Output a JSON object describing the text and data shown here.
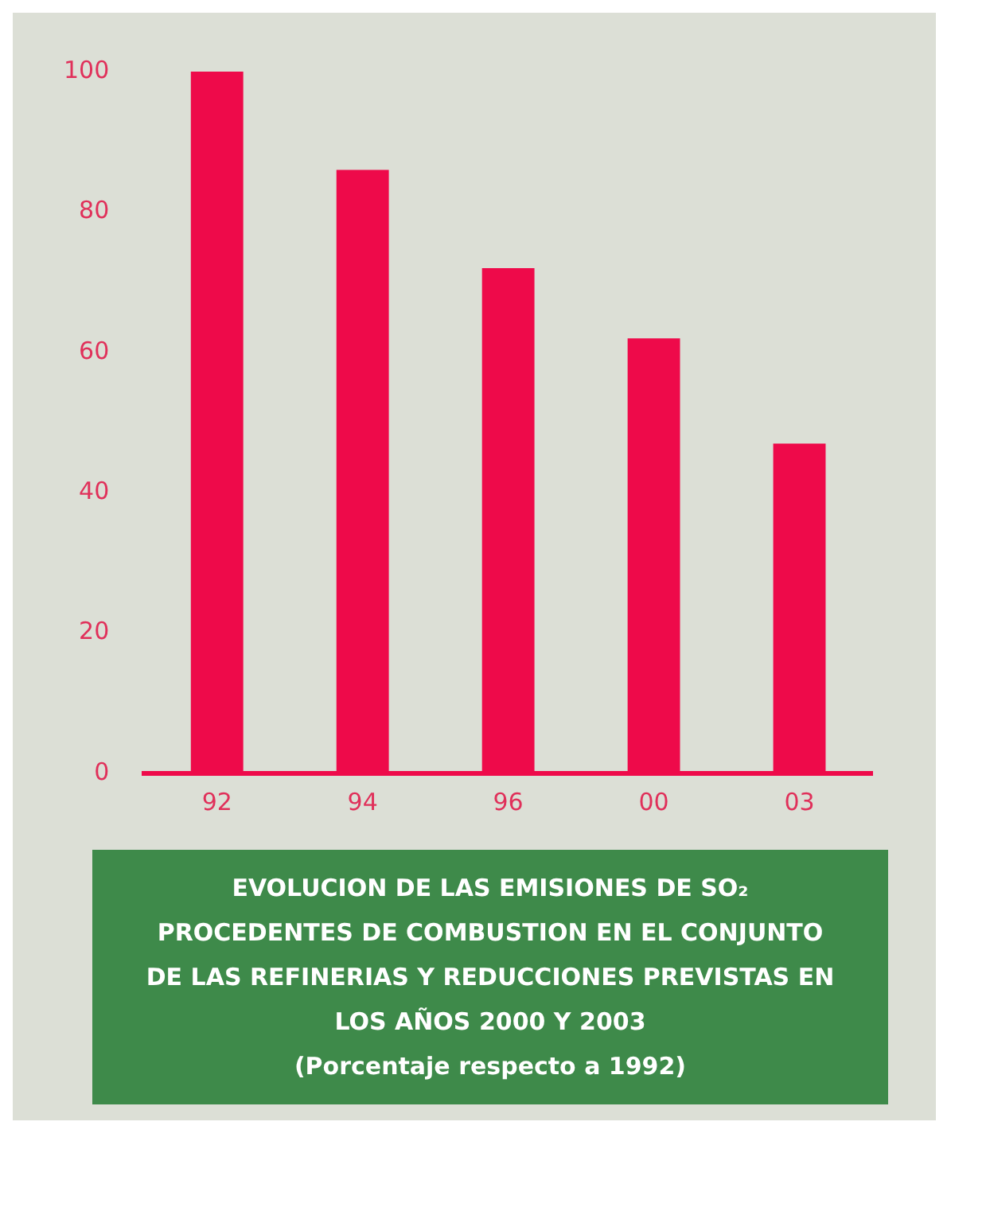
{
  "chart_data": {
    "type": "bar",
    "title": "EVOLUCION DE LAS EMISIONES DE SO₂ PROCEDENTES DE COMBUSTION EN EL CONJUNTO DE LAS REFINERIAS Y REDUCCIONES PREVISTAS EN LOS AÑOS 2000 Y 2003",
    "subtitle": "(Porcentaje respecto a 1992)",
    "categories": [
      "92",
      "94",
      "96",
      "00",
      "03"
    ],
    "values": [
      100,
      86,
      72,
      62,
      47
    ],
    "color": "#ee0a4a",
    "ylim": [
      0,
      100
    ],
    "yticks": [
      0,
      20,
      40,
      60,
      80,
      100
    ],
    "grid": false,
    "legend": false
  }
}
